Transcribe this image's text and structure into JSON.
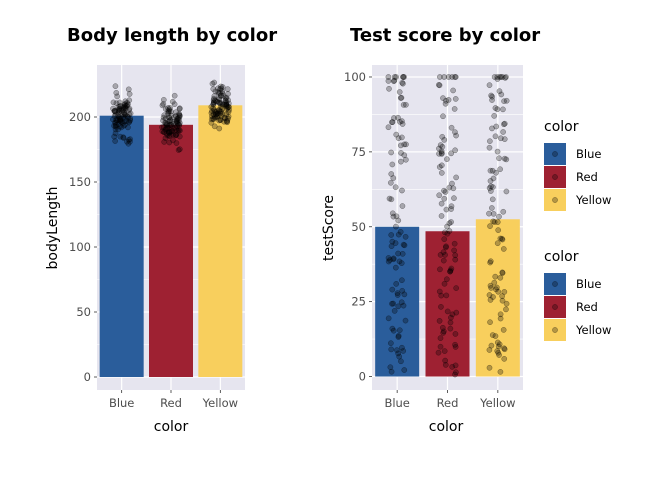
{
  "chart_data": [
    {
      "type": "bar",
      "title": "Body length by color",
      "xlabel": "color",
      "ylabel": "bodyLength",
      "categories": [
        "Blue",
        "Red",
        "Yellow"
      ],
      "values": [
        201,
        194,
        209
      ],
      "ylim": [
        0,
        240
      ],
      "yticks": [
        0,
        50,
        100,
        150,
        200
      ],
      "jitter_points": true,
      "point_ranges": [
        [
          170,
          232
        ],
        [
          165,
          218
        ],
        [
          183,
          236
        ]
      ]
    },
    {
      "type": "bar",
      "title": "Test score by color",
      "xlabel": "color",
      "ylabel": "testScore",
      "categories": [
        "Blue",
        "Red",
        "Yellow"
      ],
      "values": [
        50,
        48.5,
        52.5
      ],
      "ylim": [
        0,
        100
      ],
      "yticks": [
        0,
        25,
        50,
        75,
        100
      ],
      "jitter_points": true,
      "point_ranges": [
        [
          0,
          100
        ],
        [
          0,
          100
        ],
        [
          0,
          100
        ]
      ]
    }
  ],
  "colors": {
    "Blue": "#2a5d9b",
    "Red": "#9e2132",
    "Yellow": "#f8cf5d",
    "panel": "#e6e5ef",
    "grid": "#ffffff"
  },
  "legends": [
    {
      "title": "color",
      "items": [
        "Blue",
        "Red",
        "Yellow"
      ]
    },
    {
      "title": "color",
      "items": [
        "Blue",
        "Red",
        "Yellow"
      ]
    }
  ]
}
